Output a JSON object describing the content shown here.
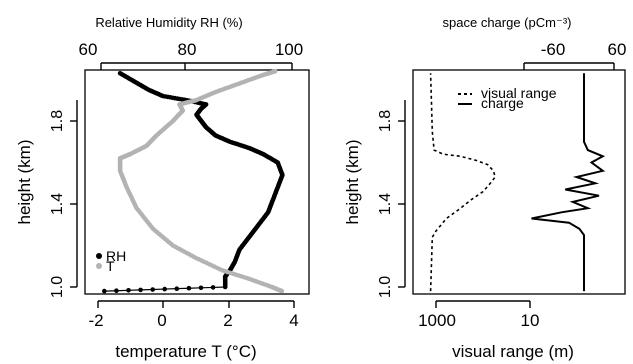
{
  "chart_data": [
    {
      "type": "scatter",
      "panel": "left",
      "xlabel": "temperature T (°C)",
      "xticks": [
        "-2",
        "0",
        "2",
        "4"
      ],
      "xlim": [
        -2,
        4
      ],
      "x2label": "Relative Humidity RH (%)",
      "x2ticks": [
        "60",
        "80",
        "100"
      ],
      "x2lim": [
        60,
        100
      ],
      "ylabel": "height (km)",
      "yticks": [
        "1.0",
        "1.4",
        "1.8"
      ],
      "ylim": [
        0.98,
        2.05
      ],
      "legend": {
        "position": "bottom-left",
        "entries": [
          "RH",
          "T"
        ]
      },
      "series": [
        {
          "name": "RH",
          "axis": "top",
          "color": "#000000",
          "points": [
            [
              60.7,
              0.98
            ],
            [
              86,
              1.0
            ],
            [
              86,
              1.05
            ],
            [
              87,
              1.08
            ],
            [
              88,
              1.12
            ],
            [
              89,
              1.18
            ],
            [
              91,
              1.24
            ],
            [
              93,
              1.3
            ],
            [
              95,
              1.36
            ],
            [
              96,
              1.42
            ],
            [
              97,
              1.48
            ],
            [
              98,
              1.54
            ],
            [
              97,
              1.6
            ],
            [
              94,
              1.64
            ],
            [
              91,
              1.67
            ],
            [
              87,
              1.7
            ],
            [
              84,
              1.73
            ],
            [
              82,
              1.77
            ],
            [
              81,
              1.8
            ],
            [
              80,
              1.83
            ],
            [
              81,
              1.86
            ],
            [
              82,
              1.88
            ],
            [
              78,
              1.9
            ],
            [
              73,
              1.92
            ],
            [
              70,
              1.95
            ],
            [
              67,
              1.99
            ],
            [
              64,
              2.03
            ]
          ]
        },
        {
          "name": "T",
          "axis": "bottom",
          "color": "#b3b3b3",
          "points": [
            [
              3.6,
              0.98
            ],
            [
              3.3,
              1.0
            ],
            [
              2.6,
              1.04
            ],
            [
              1.8,
              1.08
            ],
            [
              1.0,
              1.14
            ],
            [
              0.3,
              1.2
            ],
            [
              -0.3,
              1.28
            ],
            [
              -0.8,
              1.38
            ],
            [
              -1.1,
              1.48
            ],
            [
              -1.3,
              1.56
            ],
            [
              -1.3,
              1.62
            ],
            [
              -1.0,
              1.64
            ],
            [
              -0.5,
              1.68
            ],
            [
              -0.2,
              1.73
            ],
            [
              0.3,
              1.8
            ],
            [
              0.6,
              1.85
            ],
            [
              0.5,
              1.88
            ],
            [
              1.0,
              1.9
            ],
            [
              1.6,
              1.94
            ],
            [
              2.3,
              1.98
            ],
            [
              3.0,
              2.02
            ],
            [
              3.4,
              2.04
            ]
          ]
        }
      ]
    },
    {
      "type": "line",
      "panel": "right",
      "xlabel": "visual range (m)",
      "xticks": [
        "1000",
        "10"
      ],
      "x_scale": "log-reversed",
      "x2label": "space charge (pCm⁻³)",
      "x2ticks": [
        "-60",
        "60"
      ],
      "ylabel": "height (km)",
      "yticks": [
        "1.0",
        "1.4",
        "1.8"
      ],
      "ylim": [
        0.98,
        2.05
      ],
      "legend": {
        "position": "top-right",
        "entries": [
          "visual range",
          "charge"
        ]
      },
      "series": [
        {
          "name": "visual range",
          "style": "dashed",
          "x_axis": "bottom",
          "points": [
            [
              1300,
              0.98
            ],
            [
              1250,
              1.1
            ],
            [
              1200,
              1.24
            ],
            [
              1000,
              1.27
            ],
            [
              600,
              1.33
            ],
            [
              300,
              1.38
            ],
            [
              180,
              1.42
            ],
            [
              100,
              1.46
            ],
            [
              70,
              1.5
            ],
            [
              55,
              1.53
            ],
            [
              60,
              1.56
            ],
            [
              80,
              1.59
            ],
            [
              140,
              1.61
            ],
            [
              300,
              1.63
            ],
            [
              700,
              1.64
            ],
            [
              1100,
              1.66
            ],
            [
              1200,
              1.75
            ],
            [
              1250,
              1.9
            ],
            [
              1300,
              2.03
            ]
          ]
        },
        {
          "name": "charge",
          "style": "solid",
          "x_axis": "top",
          "points": [
            [
              20,
              0.98
            ],
            [
              20,
              1.1
            ],
            [
              20,
              1.25
            ],
            [
              14,
              1.28
            ],
            [
              0,
              1.31
            ],
            [
              -50,
              1.33
            ],
            [
              -10,
              1.36
            ],
            [
              25,
              1.38
            ],
            [
              5,
              1.41
            ],
            [
              40,
              1.44
            ],
            [
              -5,
              1.47
            ],
            [
              35,
              1.5
            ],
            [
              10,
              1.53
            ],
            [
              45,
              1.56
            ],
            [
              30,
              1.6
            ],
            [
              45,
              1.63
            ],
            [
              25,
              1.66
            ],
            [
              20,
              1.7
            ],
            [
              20,
              1.85
            ],
            [
              20,
              2.03
            ]
          ]
        }
      ]
    }
  ]
}
